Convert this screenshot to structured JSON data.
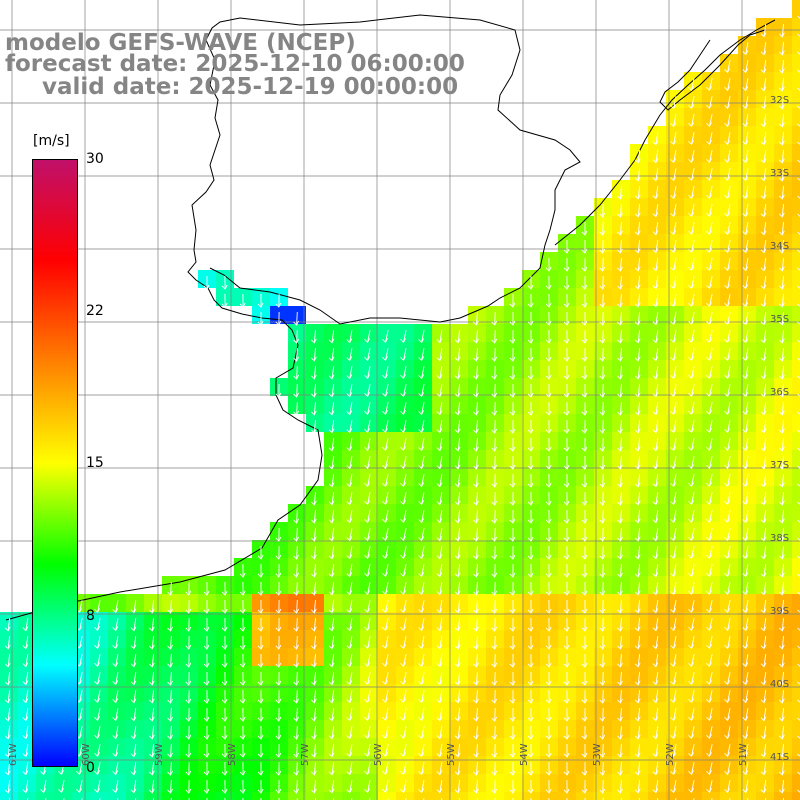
{
  "title": {
    "line1": "modelo GEFS-WAVE (NCEP)",
    "line2": "forecast date: 2025-12-10 06:00:00",
    "line3": "valid date: 2025-12-19 00:00:00"
  },
  "colorbar": {
    "unit": "[m/s]",
    "ticks": [
      "30",
      "22",
      "15",
      "8",
      "0"
    ],
    "stops": [
      "#0000ff",
      "#00ffff",
      "#00ff00",
      "#ffff00",
      "#ff8000",
      "#ff0000",
      "#c0106a"
    ]
  },
  "lat_labels": [
    "32S",
    "33S",
    "34S",
    "35S",
    "36S",
    "37S",
    "38S",
    "39S",
    "40S",
    "41S"
  ],
  "lon_labels": [
    "61W",
    "60W",
    "59W",
    "58W",
    "57W",
    "56W",
    "55W",
    "54W",
    "53W",
    "52W",
    "51W"
  ],
  "colors": {
    "land": "#ffffff",
    "grid": "#808080",
    "coast": "#000000",
    "arrow": "#ffffff",
    "title": "#858585"
  }
}
